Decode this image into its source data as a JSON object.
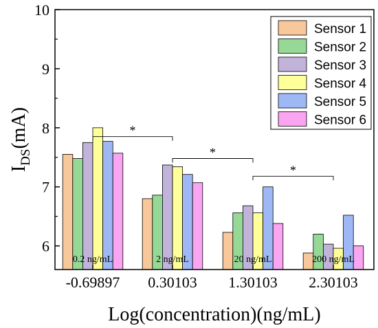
{
  "chart_data": {
    "type": "bar",
    "xlabel": "Log(concentration)(ng/mL)",
    "ylabel_main": "I",
    "ylabel_sub": "DS",
    "ylabel_unit": "(mA)",
    "ylim": [
      5.6,
      10
    ],
    "yticks": [
      6,
      7,
      8,
      9,
      10
    ],
    "categories": [
      "-0.69897",
      "0.30103",
      "1.30103",
      "2.30103"
    ],
    "category_labels": [
      "0.2 ng/mL",
      "2 ng/mL",
      "20 ng/mL",
      "200 ng/mL"
    ],
    "series": [
      {
        "name": "Sensor 1",
        "color": "#F9C89A",
        "values": [
          7.55,
          6.8,
          6.23,
          5.88
        ]
      },
      {
        "name": "Sensor 2",
        "color": "#96D896",
        "values": [
          7.48,
          6.86,
          6.56,
          6.2
        ]
      },
      {
        "name": "Sensor 3",
        "color": "#C2B3DB",
        "values": [
          7.75,
          7.37,
          6.68,
          6.03
        ]
      },
      {
        "name": "Sensor 4",
        "color": "#FFFF99",
        "values": [
          8.0,
          7.34,
          6.56,
          5.96
        ]
      },
      {
        "name": "Sensor 5",
        "color": "#9EB8F5",
        "values": [
          7.77,
          7.21,
          7.0,
          6.52
        ]
      },
      {
        "name": "Sensor 6",
        "color": "#FAA5F2",
        "values": [
          7.57,
          7.07,
          6.38,
          6.0
        ]
      }
    ],
    "significance": [
      {
        "from": 0,
        "to": 1,
        "y": 7.85,
        "label": "*"
      },
      {
        "from": 1,
        "to": 2,
        "y": 7.48,
        "label": "*"
      },
      {
        "from": 2,
        "to": 3,
        "y": 7.18,
        "label": "*"
      }
    ],
    "legend_position": "top-right",
    "grid": false
  }
}
